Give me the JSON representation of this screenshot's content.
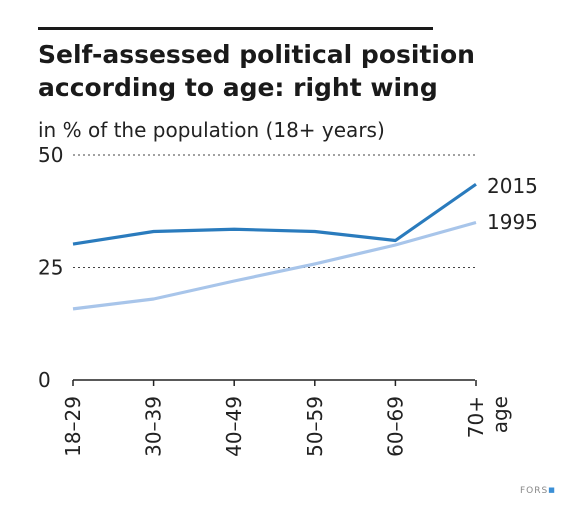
{
  "title_line1": "Self-assessed political position",
  "title_line2": "according to age: right wing",
  "subtitle": "in % of the population (18+ years)",
  "credit": "FORS",
  "colors": {
    "s2015": "#2a7bbd",
    "s1995": "#a8c5ea",
    "axis": "#222222",
    "grid": "#444444"
  },
  "chart_data": {
    "type": "line",
    "title": "Self-assessed political position according to age: right wing",
    "xlabel": "age",
    "ylabel": "",
    "categories": [
      "18–29",
      "30–39",
      "40–49",
      "50–59",
      "60–69",
      "70+"
    ],
    "ylim": [
      0,
      50
    ],
    "yticks": [
      0,
      25,
      50
    ],
    "grid": "dashed at 25 and 50",
    "series": [
      {
        "name": "2015",
        "values": [
          30.2,
          33.0,
          33.5,
          33.0,
          31.0,
          43.5
        ]
      },
      {
        "name": "1995",
        "values": [
          15.8,
          18.0,
          22.0,
          25.8,
          30.0,
          35.0
        ]
      }
    ]
  }
}
